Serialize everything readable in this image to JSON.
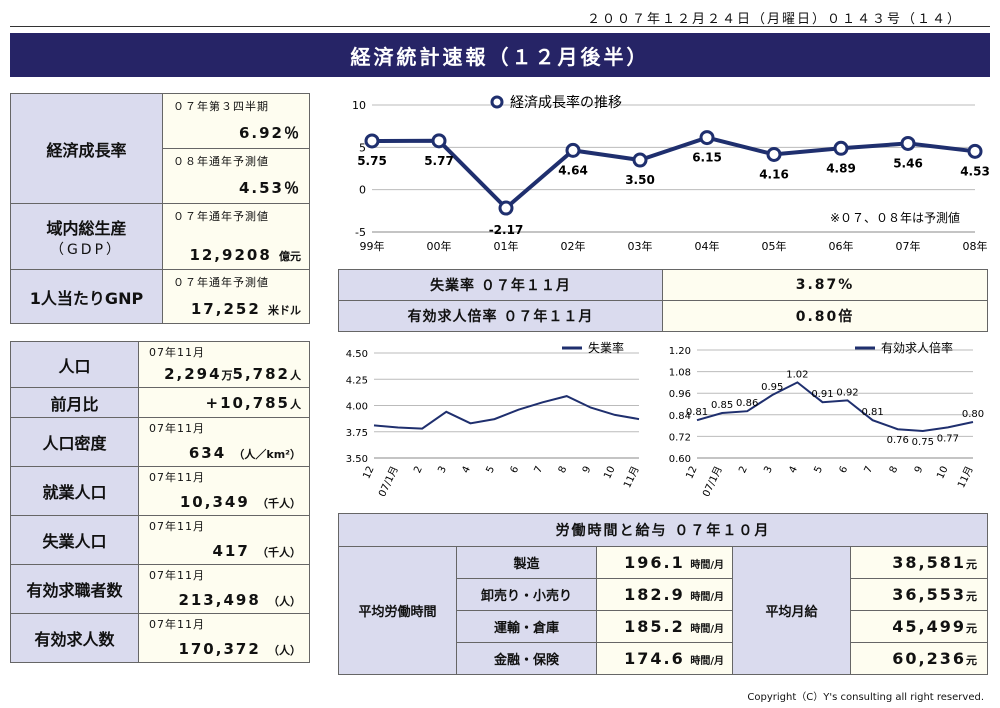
{
  "issue_line": "２００７年１２月２４日（月曜日）０１４３号（１４）",
  "title": "経済統計速報（１２月後半）",
  "left_top": {
    "gdp_growth_label": "経済成長率",
    "q3_sub": "０７年第３四半期",
    "q3_value": "6.92％",
    "f08_sub": "０８年通年予測値",
    "f08_value": "4.53％",
    "gdp_label_1": "域内総生産",
    "gdp_label_2": "（GDP）",
    "gdp_sub": "０７年通年予測値",
    "gdp_value": "12,9208",
    "gdp_unit": "億元",
    "gnp_label": "1人当たりGNP",
    "gnp_sub": "０７年通年予測値",
    "gnp_value": "17,252",
    "gnp_unit": "米ドル"
  },
  "left_stats": [
    {
      "label": "人口",
      "sub": "07年11月",
      "value": "2,294",
      "unit_mid": "万",
      "value2": "5,782",
      "unit": "人"
    },
    {
      "label": "前月比",
      "sub": "",
      "value": "+10,785",
      "unit": "人"
    },
    {
      "label": "人口密度",
      "sub": "07年11月",
      "value": "634",
      "unit": "（人／km²）"
    },
    {
      "label": "就業人口",
      "sub": "07年11月",
      "value": "10,349",
      "unit": "（千人）"
    },
    {
      "label": "失業人口",
      "sub": "07年11月",
      "value": "417",
      "unit": "（千人）"
    },
    {
      "label": "有効求職者数",
      "sub": "07年11月",
      "value": "213,498",
      "unit": "（人）"
    },
    {
      "label": "有効求人数",
      "sub": "07年11月",
      "value": "170,372",
      "unit": "（人）"
    }
  ],
  "mid_table": {
    "unemp_label": "失業率 ０７年１１月",
    "unemp_value": "3.87%",
    "ratio_label": "有効求人倍率 ０７年１１月",
    "ratio_value": "0.80倍"
  },
  "labor": {
    "title": "労働時間と給与 ０７年１０月",
    "hours_label": "平均労働時間",
    "wage_label": "平均月給",
    "rows": [
      {
        "sector": "製造",
        "hours": "196.1",
        "hours_unit": "時間/月",
        "wage": "38,581",
        "wage_unit": "元"
      },
      {
        "sector": "卸売り・小売り",
        "hours": "182.9",
        "hours_unit": "時間/月",
        "wage": "36,553",
        "wage_unit": "元"
      },
      {
        "sector": "運輸・倉庫",
        "hours": "185.2",
        "hours_unit": "時間/月",
        "wage": "45,499",
        "wage_unit": "元"
      },
      {
        "sector": "金融・保険",
        "hours": "174.6",
        "hours_unit": "時間/月",
        "wage": "60,236",
        "wage_unit": "元"
      }
    ]
  },
  "copyright": "Copyright（C）Y's consulting all right reserved.",
  "chart_data": [
    {
      "type": "line",
      "title": "経済成長率の推移",
      "categories": [
        "99年",
        "00年",
        "01年",
        "02年",
        "03年",
        "04年",
        "05年",
        "06年",
        "07年",
        "08年"
      ],
      "series": [
        {
          "name": "経済成長率の推移",
          "values": [
            5.75,
            5.77,
            -2.17,
            4.64,
            3.5,
            6.15,
            4.16,
            4.89,
            5.46,
            4.53
          ],
          "color": "#1f2f6e"
        }
      ],
      "data_labels": [
        "5.75",
        "5.77",
        "-2.17",
        "4.64",
        "3.50",
        "6.15",
        "4.16",
        "4.89",
        "5.46",
        "4.53"
      ],
      "y_ticks": [
        "10",
        "5",
        "0",
        "-5"
      ],
      "ylim": [
        -5,
        10
      ],
      "grid": true,
      "annotation": "※０７、０８年は予測値",
      "legend": "top-center"
    },
    {
      "type": "line",
      "categories": [
        "12",
        "07/1月",
        "2",
        "3",
        "4",
        "5",
        "6",
        "7",
        "8",
        "9",
        "10",
        "11月"
      ],
      "series": [
        {
          "name": "失業率",
          "values": [
            3.81,
            3.79,
            3.78,
            3.94,
            3.83,
            3.87,
            3.96,
            4.03,
            4.09,
            3.98,
            3.91,
            3.87
          ],
          "color": "#1f2f6e"
        }
      ],
      "y_ticks": [
        "4.50",
        "4.25",
        "4.00",
        "3.75",
        "3.50"
      ],
      "ylim": [
        3.5,
        4.5
      ],
      "grid": true,
      "legend": "top-right"
    },
    {
      "type": "line",
      "categories": [
        "12",
        "07/1月",
        "2",
        "3",
        "4",
        "5",
        "6",
        "7",
        "8",
        "9",
        "10",
        "11月"
      ],
      "series": [
        {
          "name": "有効求人倍率",
          "values": [
            0.81,
            0.85,
            0.86,
            0.95,
            1.02,
            0.91,
            0.92,
            0.81,
            0.76,
            0.75,
            0.77,
            0.8
          ],
          "color": "#1f2f6e"
        }
      ],
      "data_labels": [
        "0.81",
        "0.85",
        "0.86",
        "0.95",
        "1.02",
        "0.91",
        "0.92",
        "0.81",
        "0.76",
        "0.75",
        "0.77",
        "0.80"
      ],
      "y_ticks": [
        "1.20",
        "1.08",
        "0.96",
        "0.84",
        "0.72",
        "0.60"
      ],
      "ylim": [
        0.6,
        1.2
      ],
      "grid": true,
      "legend": "top-right"
    }
  ]
}
